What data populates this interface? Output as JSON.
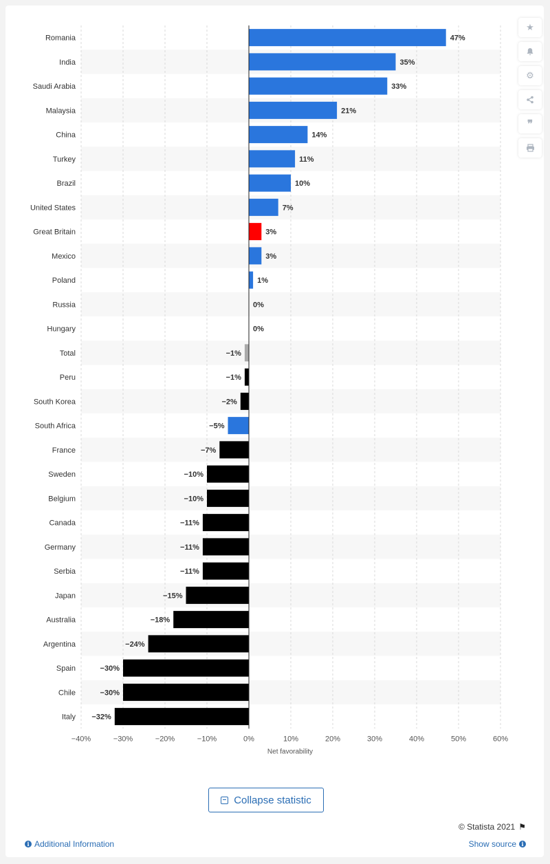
{
  "chart_data": {
    "type": "bar",
    "orientation": "horizontal",
    "categories": [
      "Romania",
      "India",
      "Saudi Arabia",
      "Malaysia",
      "China",
      "Turkey",
      "Brazil",
      "United States",
      "Great Britain",
      "Mexico",
      "Poland",
      "Russia",
      "Hungary",
      "Total",
      "Peru",
      "South Korea",
      "South Africa",
      "France",
      "Sweden",
      "Belgium",
      "Canada",
      "Germany",
      "Serbia",
      "Japan",
      "Australia",
      "Argentina",
      "Spain",
      "Chile",
      "Italy"
    ],
    "values": [
      47,
      35,
      33,
      21,
      14,
      11,
      10,
      7,
      3,
      3,
      1,
      0,
      0,
      -1,
      -1,
      -2,
      -5,
      -7,
      -10,
      -10,
      -11,
      -11,
      -11,
      -15,
      -18,
      -24,
      -30,
      -30,
      -32
    ],
    "value_labels": [
      "47%",
      "35%",
      "33%",
      "21%",
      "14%",
      "11%",
      "10%",
      "7%",
      "3%",
      "3%",
      "1%",
      "0%",
      "0%",
      "−1%",
      "−1%",
      "−2%",
      "−5%",
      "−7%",
      "−10%",
      "−10%",
      "−11%",
      "−11%",
      "−11%",
      "−15%",
      "−18%",
      "−24%",
      "−30%",
      "−30%",
      "−32%"
    ],
    "bar_colors": [
      "#2a76dd",
      "#2a76dd",
      "#2a76dd",
      "#2a76dd",
      "#2a76dd",
      "#2a76dd",
      "#2a76dd",
      "#2a76dd",
      "#ff0000",
      "#2a76dd",
      "#2a76dd",
      "#2a76dd",
      "#2a76dd",
      "#aaaaaa",
      "#000000",
      "#000000",
      "#2a76dd",
      "#000000",
      "#000000",
      "#000000",
      "#000000",
      "#000000",
      "#000000",
      "#000000",
      "#000000",
      "#000000",
      "#000000",
      "#000000",
      "#000000"
    ],
    "xlabel": "Net favorability",
    "xlim": [
      -40,
      60
    ],
    "xticks": [
      -40,
      -30,
      -20,
      -10,
      0,
      10,
      20,
      30,
      40,
      50,
      60
    ],
    "xtick_labels": [
      "−40%",
      "−30%",
      "−20%",
      "−10%",
      "0%",
      "10%",
      "20%",
      "30%",
      "40%",
      "50%",
      "60%"
    ],
    "grid": "vertical dashed"
  },
  "toolbar": {
    "icons": [
      "star-icon",
      "bell-icon",
      "gear-icon",
      "share-icon",
      "quote-icon",
      "print-icon"
    ]
  },
  "footer": {
    "collapse_label": "Collapse statistic",
    "copyright": "© Statista 2021",
    "additional_info": "Additional Information",
    "show_source": "Show source"
  }
}
